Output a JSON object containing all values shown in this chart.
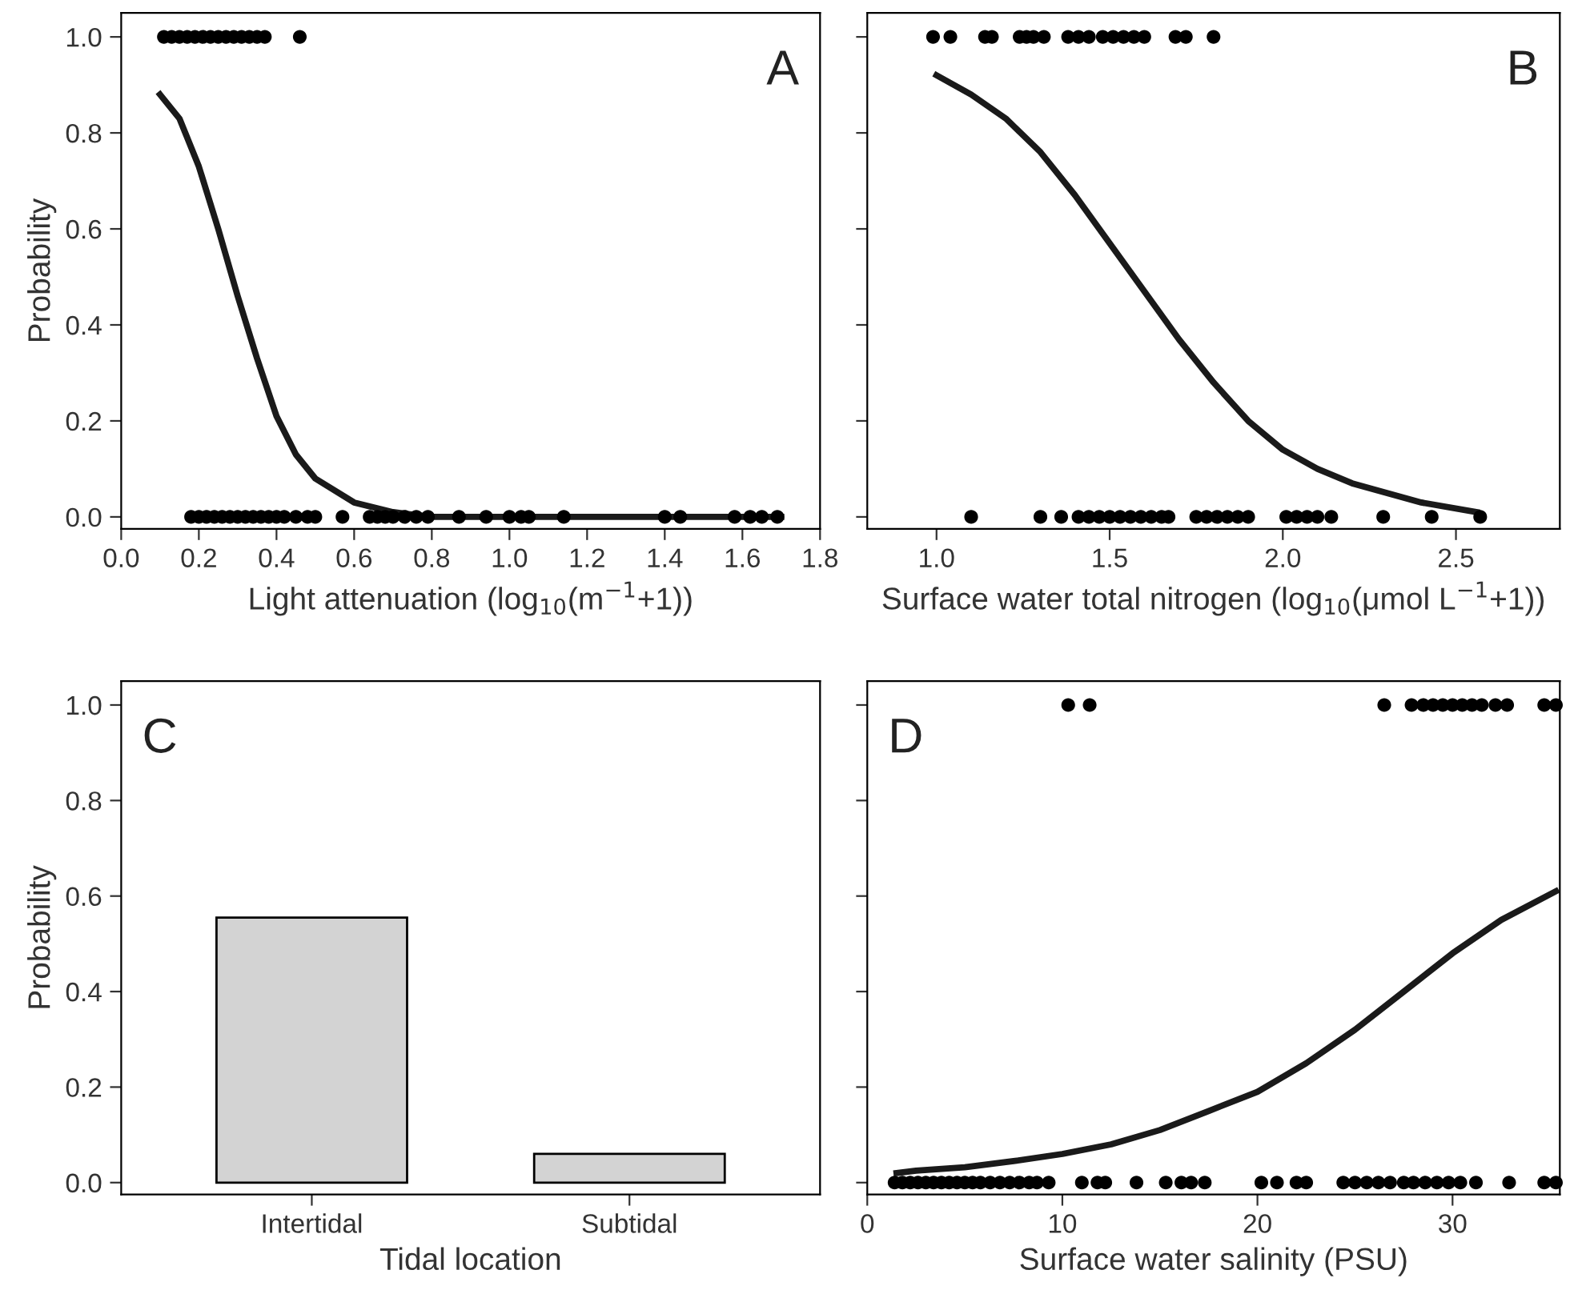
{
  "chart_data": [
    {
      "type": "scatter",
      "xlabel": "Light attenuation (log$_{10}$(m$^{−1}$+1))",
      "ylabel": "Probability",
      "annotations": [
        "A"
      ],
      "xlim": [
        0,
        1.8
      ],
      "xticks": [
        {
          "value": 0,
          "label": "0.0"
        },
        0.2,
        0.4,
        0.6,
        0.8,
        {
          "value": 1,
          "label": "1.0"
        },
        1.2,
        1.4,
        1.6,
        1.8
      ],
      "ylim": [
        -0.025,
        1.05
      ],
      "yticks": [
        {
          "value": 0,
          "label": "0.0"
        },
        0.2,
        0.4,
        0.6,
        0.8,
        {
          "value": 1,
          "label": "1.0"
        }
      ],
      "grid": false,
      "legend": false,
      "series": [
        {
          "type": "scatter",
          "marker": "circle",
          "color": "#000000",
          "x": [
            0.11,
            0.13,
            0.15,
            0.17,
            0.19,
            0.21,
            0.23,
            0.25,
            0.27,
            0.29,
            0.31,
            0.33,
            0.35,
            0.37,
            0.46
          ],
          "values": [
            1,
            1,
            1,
            1,
            1,
            1,
            1,
            1,
            1,
            1,
            1,
            1,
            1,
            1,
            1
          ]
        },
        {
          "type": "scatter",
          "marker": "circle",
          "color": "#000000",
          "x": [
            0.18,
            0.2,
            0.22,
            0.24,
            0.26,
            0.28,
            0.3,
            0.32,
            0.34,
            0.36,
            0.38,
            0.4,
            0.42,
            0.45,
            0.48,
            0.5,
            0.57,
            0.64,
            0.66,
            0.68,
            0.7,
            0.73,
            0.76,
            0.79,
            0.87,
            0.94,
            1.0,
            1.03,
            1.05,
            1.14,
            1.4,
            1.44,
            1.58,
            1.62,
            1.65,
            1.69
          ],
          "values": [
            0,
            0,
            0,
            0,
            0,
            0,
            0,
            0,
            0,
            0,
            0,
            0,
            0,
            0,
            0,
            0,
            0,
            0,
            0,
            0,
            0,
            0,
            0,
            0,
            0,
            0,
            0,
            0,
            0,
            0,
            0,
            0,
            0,
            0,
            0,
            0
          ]
        },
        {
          "type": "line",
          "marker": "none",
          "color": "#1a1a1a",
          "line_style": "solid",
          "x": [
            0.1,
            0.15,
            0.2,
            0.25,
            0.3,
            0.35,
            0.4,
            0.45,
            0.5,
            0.6,
            0.7,
            0.8,
            1.0,
            1.2,
            1.4,
            1.7
          ],
          "values": [
            0.88,
            0.83,
            0.73,
            0.6,
            0.46,
            0.33,
            0.21,
            0.13,
            0.08,
            0.03,
            0.01,
            0.0,
            0.0,
            0.0,
            0.0,
            0.0
          ]
        }
      ]
    },
    {
      "type": "scatter",
      "xlabel": "Surface water total nitrogen (log$_{10}$(μmol L$^{−1}$+1))",
      "annotations": [
        "B"
      ],
      "xlim": [
        0.8,
        2.8
      ],
      "xticks": [
        {
          "value": 1,
          "label": "1.0"
        },
        1.5,
        {
          "value": 2,
          "label": "2.0"
        },
        2.5
      ],
      "ylim": [
        -0.025,
        1.05
      ],
      "yticks": [
        {
          "value": 0,
          "label": null
        },
        {
          "value": 0.2,
          "label": null
        },
        {
          "value": 0.4,
          "label": null
        },
        {
          "value": 0.6,
          "label": null
        },
        {
          "value": 0.8,
          "label": null
        },
        {
          "value": 1,
          "label": null
        }
      ],
      "tick_labels": "x",
      "grid": false,
      "legend": false,
      "series": [
        {
          "type": "scatter",
          "marker": "circle",
          "color": "#000000",
          "x": [
            0.99,
            1.04,
            1.14,
            1.16,
            1.24,
            1.26,
            1.28,
            1.31,
            1.38,
            1.41,
            1.44,
            1.48,
            1.51,
            1.54,
            1.57,
            1.6,
            1.69,
            1.72,
            1.8
          ],
          "values": [
            1,
            1,
            1,
            1,
            1,
            1,
            1,
            1,
            1,
            1,
            1,
            1,
            1,
            1,
            1,
            1,
            1,
            1,
            1
          ]
        },
        {
          "type": "scatter",
          "marker": "circle",
          "color": "#000000",
          "x": [
            1.1,
            1.3,
            1.36,
            1.41,
            1.44,
            1.47,
            1.5,
            1.53,
            1.56,
            1.59,
            1.62,
            1.65,
            1.67,
            1.75,
            1.78,
            1.81,
            1.84,
            1.87,
            1.9,
            2.01,
            2.04,
            2.07,
            2.1,
            2.14,
            2.29,
            2.43,
            2.57
          ],
          "values": [
            0,
            0,
            0,
            0,
            0,
            0,
            0,
            0,
            0,
            0,
            0,
            0,
            0,
            0,
            0,
            0,
            0,
            0,
            0,
            0,
            0,
            0,
            0,
            0,
            0,
            0,
            0
          ]
        },
        {
          "type": "line",
          "marker": "none",
          "color": "#1a1a1a",
          "line_style": "solid",
          "x": [
            1.0,
            1.1,
            1.2,
            1.3,
            1.4,
            1.5,
            1.6,
            1.7,
            1.8,
            1.9,
            2.0,
            2.1,
            2.2,
            2.3,
            2.4,
            2.56
          ],
          "values": [
            0.92,
            0.88,
            0.83,
            0.76,
            0.67,
            0.57,
            0.47,
            0.37,
            0.28,
            0.2,
            0.14,
            0.1,
            0.07,
            0.05,
            0.03,
            0.01
          ]
        }
      ]
    },
    {
      "type": "bar",
      "xlabel": "Tidal location",
      "ylabel": "Probability",
      "annotations": [
        "C"
      ],
      "categories": [
        "Intertidal",
        "Subtidal"
      ],
      "values": [
        0.555,
        0.06
      ],
      "color": "#d3d3d3",
      "ylim": [
        -0.025,
        1.05
      ],
      "yticks": [
        {
          "value": 0,
          "label": "0.0"
        },
        0.2,
        0.4,
        0.6,
        0.8,
        {
          "value": 1,
          "label": "1.0"
        }
      ],
      "grid": false,
      "legend": false
    },
    {
      "type": "scatter",
      "xlabel": "Surface water salinity (PSU)",
      "annotations": [
        "D"
      ],
      "xlim": [
        0,
        35.5
      ],
      "xticks": [
        0,
        10,
        20,
        30
      ],
      "ylim": [
        -0.025,
        1.05
      ],
      "yticks": [
        {
          "value": 0,
          "label": null
        },
        {
          "value": 0.2,
          "label": null
        },
        {
          "value": 0.4,
          "label": null
        },
        {
          "value": 0.6,
          "label": null
        },
        {
          "value": 0.8,
          "label": null
        },
        {
          "value": 1,
          "label": null
        }
      ],
      "tick_labels": "x",
      "grid": false,
      "legend": false,
      "series": [
        {
          "type": "scatter",
          "marker": "circle",
          "color": "#000000",
          "x": [
            10.3,
            11.4,
            26.5,
            27.9,
            28.5,
            29.0,
            29.5,
            30.0,
            30.5,
            31.0,
            31.5,
            32.2,
            32.8,
            34.7,
            35.3
          ],
          "values": [
            1,
            1,
            1,
            1,
            1,
            1,
            1,
            1,
            1,
            1,
            1,
            1,
            1,
            1,
            1
          ]
        },
        {
          "type": "scatter",
          "marker": "circle",
          "color": "#000000",
          "x": [
            1.4,
            1.8,
            2.2,
            2.6,
            3.0,
            3.4,
            3.8,
            4.2,
            4.6,
            5.0,
            5.4,
            5.8,
            6.3,
            6.8,
            7.3,
            7.8,
            8.3,
            8.7,
            9.3,
            11.0,
            11.8,
            12.2,
            13.8,
            15.3,
            16.1,
            16.6,
            17.3,
            20.2,
            21.0,
            22.0,
            22.5,
            24.4,
            25.0,
            25.6,
            26.2,
            26.8,
            27.5,
            28.0,
            28.6,
            29.2,
            29.8,
            30.4,
            31.2,
            32.9,
            34.7,
            35.3
          ],
          "values": [
            0,
            0,
            0,
            0,
            0,
            0,
            0,
            0,
            0,
            0,
            0,
            0,
            0,
            0,
            0,
            0,
            0,
            0,
            0,
            0,
            0,
            0,
            0,
            0,
            0,
            0,
            0,
            0,
            0,
            0,
            0,
            0,
            0,
            0,
            0,
            0,
            0,
            0,
            0,
            0,
            0,
            0,
            0,
            0,
            0,
            0
          ]
        },
        {
          "type": "line",
          "marker": "none",
          "color": "#1a1a1a",
          "line_style": "solid",
          "x": [
            1.5,
            2.5,
            5,
            7.5,
            10,
            12.5,
            15,
            17.5,
            20,
            22.5,
            25,
            27.5,
            30,
            32.5,
            35.3
          ],
          "values": [
            0.02,
            0.025,
            0.032,
            0.045,
            0.06,
            0.08,
            0.11,
            0.15,
            0.19,
            0.25,
            0.32,
            0.4,
            0.48,
            0.55,
            0.61
          ]
        }
      ]
    }
  ]
}
